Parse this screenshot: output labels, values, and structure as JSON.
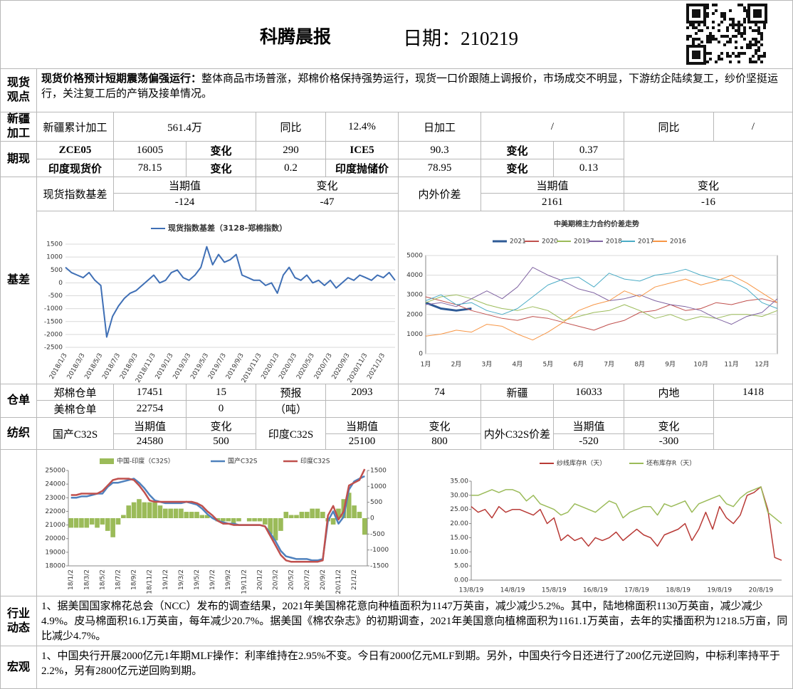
{
  "header": {
    "title": "科腾晨报",
    "date": "日期：210219"
  },
  "sections": {
    "spot": "现货观点",
    "xinjiang": "新疆加工",
    "futures": "期现",
    "basis": "基差",
    "warehouse": "仓单",
    "textile": "纺织",
    "industry": "行业动态",
    "macro": "宏观"
  },
  "spot_view": {
    "lead": "现货价格预计短期震荡偏强运行：",
    "text": "整体商品市场普涨，郑棉价格保持强势运行，现货一口价跟随上调报价，市场成交不明显，下游纺企陆续复工，纱价坚挺运行，关注复工后的产销及接单情况。"
  },
  "xinjiang_row": [
    "新疆累计加工",
    "561.4万",
    "同比",
    "12.4%",
    "日加工",
    "/",
    "同比",
    "/"
  ],
  "futures_rows": [
    [
      "ZCE05",
      "16005",
      "变化",
      "290",
      "ICE5",
      "90.3",
      "变化",
      "0.37"
    ],
    [
      "印度现货价",
      "78.15",
      "变化",
      "0.2",
      "印度抛储价",
      "78.95",
      "变化",
      "0.13"
    ]
  ],
  "basis_table": {
    "header": [
      "现货指数基差",
      "当期值",
      "变化",
      "内外价差",
      "当期值",
      "变化"
    ],
    "values": [
      "-124",
      "-47",
      "2161",
      "-16"
    ]
  },
  "warehouse_rows": [
    [
      "郑棉仓单",
      "17451",
      "15",
      "预报",
      "2093",
      "74",
      "新疆",
      "16033",
      "内地",
      "1418"
    ],
    [
      "美棉仓单",
      "22754",
      "0",
      "（吨）"
    ]
  ],
  "textile_table": {
    "header": [
      "国产C32S",
      "当期值",
      "变化",
      "印度C32S",
      "当期值",
      "变化",
      "内外C32S价差",
      "当期值",
      "变化"
    ],
    "values": [
      "24580",
      "500",
      "25100",
      "800",
      "-520",
      "-300"
    ]
  },
  "industry_news": "1、据美国国家棉花总会（NCC）发布的调查结果，2021年美国棉花意向种植面积为1147万英亩，减少减少5.2%。其中，陆地棉面积1130万英亩，减少减少4.9%。皮马棉面积16.1万英亩，每年减少20.7%。据美国《棉农杂志》的初期调查，2021年美国意向植棉面积为1161.1万英亩，去年的实播面积为1218.5万亩，同比减少4.7%。",
  "macro_news": "1、中国央行开展2000亿元1年期MLF操作：利率维持在2.95%不变。今日有2000亿元MLF到期。另外，中国央行今日还进行了200亿元逆回购，中标利率持平于2.2%，另有2800亿元逆回购到期。",
  "chart_data": [
    {
      "type": "line",
      "grid": true,
      "categories": [
        "2018/1/3",
        null,
        null,
        "2018/3/3",
        null,
        null,
        "2018/5/3",
        null,
        null,
        "2018/7/3",
        null,
        null,
        "2018/9/3",
        null,
        null,
        "2018/11/3",
        null,
        null,
        "2019/1/3",
        null,
        null,
        "2019/3/3",
        null,
        null,
        "2019/5/3",
        null,
        null,
        "2019/7/3",
        null,
        null,
        "2019/9/3",
        null,
        null,
        "2019/11/3",
        null,
        null,
        "2020/1/3",
        null,
        null,
        "2020/3/3",
        null,
        null,
        "2020/5/3",
        null,
        null,
        "2020/7/3",
        null,
        null,
        "2020/9/3",
        null,
        null,
        "2020/11/3",
        null,
        null,
        "2021/1/3",
        null,
        null
      ],
      "series": [
        {
          "name": "现货指数基差（3128-郑棉指数）",
          "color": "#3f6fb5",
          "values": [
            600,
            400,
            300,
            200,
            400,
            100,
            -100,
            -2100,
            -1300,
            -900,
            -600,
            -400,
            -300,
            -100,
            100,
            300,
            0,
            100,
            400,
            500,
            200,
            100,
            300,
            600,
            1400,
            700,
            1100,
            800,
            900,
            1100,
            300,
            200,
            100,
            100,
            -100,
            0,
            -400,
            300,
            600,
            200,
            100,
            300,
            0,
            100,
            -100,
            100,
            -200,
            0,
            200,
            100,
            300,
            200,
            100,
            300,
            200,
            400,
            100
          ]
        }
      ],
      "ylim": [
        -2500,
        1500
      ],
      "yticks": [
        -2500,
        -2000,
        -1500,
        -1000,
        -500,
        0,
        500,
        1000,
        1500
      ]
    },
    {
      "type": "line",
      "title": "中美期棉主力合约价差走势",
      "grid": true,
      "categories": [
        "1月",
        null,
        "2月",
        null,
        "3月",
        null,
        "4月",
        null,
        "5月",
        null,
        "6月",
        null,
        "7月",
        null,
        "8月",
        null,
        "9月",
        null,
        "10月",
        null,
        "11月",
        null,
        "12月",
        null
      ],
      "series": [
        {
          "name": "2021",
          "color": "#2e5a96",
          "values": [
            2600,
            2300,
            2200,
            2300,
            null,
            null,
            null,
            null,
            null,
            null,
            null,
            null,
            null,
            null,
            null,
            null,
            null,
            null,
            null,
            null,
            null,
            null,
            null,
            null
          ]
        },
        {
          "name": "2020",
          "color": "#c0504d",
          "values": [
            2900,
            2700,
            2500,
            2200,
            2000,
            1800,
            1700,
            1900,
            1800,
            1600,
            1400,
            1200,
            1500,
            1700,
            2100,
            2200,
            2500,
            2200,
            2300,
            2600,
            2500,
            2700,
            2800,
            2600
          ]
        },
        {
          "name": "2019",
          "color": "#9bbb59",
          "values": [
            2600,
            2900,
            3000,
            2800,
            2500,
            2300,
            2200,
            2400,
            2200,
            1700,
            1900,
            2100,
            2200,
            2500,
            2200,
            1800,
            2000,
            1700,
            1900,
            1800,
            2000,
            2000,
            1900,
            2200
          ]
        },
        {
          "name": "2018",
          "color": "#8064a2",
          "values": [
            2500,
            2600,
            2400,
            2800,
            3200,
            2800,
            3400,
            4400,
            4000,
            3700,
            3300,
            3100,
            2700,
            2800,
            3000,
            2700,
            2500,
            2400,
            2200,
            1800,
            1500,
            1900,
            2100,
            2800
          ]
        },
        {
          "name": "2017",
          "color": "#4bacc6",
          "values": [
            2700,
            3000,
            2500,
            2600,
            2200,
            2000,
            2300,
            2900,
            3500,
            3800,
            3900,
            3400,
            4100,
            3800,
            3700,
            4000,
            4100,
            4300,
            4000,
            3800,
            3700,
            3300,
            2600,
            2300
          ]
        },
        {
          "name": "2016",
          "color": "#f79646",
          "values": [
            900,
            1000,
            1200,
            1100,
            1500,
            1400,
            1000,
            700,
            1100,
            1600,
            2200,
            2500,
            2700,
            3200,
            2900,
            3400,
            3600,
            3800,
            3500,
            3700,
            4000,
            3600,
            3100,
            2600
          ]
        }
      ],
      "ylim": [
        0,
        5000
      ],
      "yticks": [
        0,
        1000,
        2000,
        3000,
        4000,
        5000
      ]
    },
    {
      "type": "combo",
      "grid": false,
      "categories": [
        "18/1/2",
        null,
        null,
        "18/3/2",
        null,
        null,
        "18/5/2",
        null,
        null,
        "18/7/2",
        null,
        null,
        "18/9/2",
        null,
        null,
        "18/11/2",
        null,
        null,
        "19/1/2",
        null,
        null,
        "19/3/2",
        null,
        null,
        "19/5/2",
        null,
        null,
        "19/7/2",
        null,
        null,
        "19/9/2",
        null,
        null,
        "19/11/2",
        null,
        null,
        "20/1/2",
        null,
        null,
        "20/3/2",
        null,
        null,
        "20/5/2",
        null,
        null,
        "20/7/2",
        null,
        null,
        "20/9/2",
        null,
        null,
        "20/11/2",
        null,
        null,
        "21/1/2",
        null,
        null
      ],
      "series": [
        {
          "name": "中国-印度（C32S）",
          "type": "bar",
          "axis": "y2",
          "color": "#9bbb59",
          "values": [
            -300,
            -300,
            -300,
            -300,
            -200,
            -300,
            -200,
            -400,
            -600,
            -200,
            100,
            400,
            500,
            600,
            500,
            500,
            500,
            400,
            300,
            300,
            300,
            300,
            200,
            200,
            200,
            100,
            100,
            0,
            -100,
            -100,
            -100,
            -200,
            -100,
            0,
            -100,
            -100,
            -100,
            -200,
            -500,
            -700,
            -400,
            200,
            100,
            100,
            200,
            200,
            300,
            300,
            200,
            -100,
            -200,
            300,
            600,
            800,
            400,
            200,
            -520
          ]
        },
        {
          "name": "国产C32S",
          "type": "line",
          "color": "#4f81bd",
          "values": [
            23000,
            23000,
            23100,
            23100,
            23200,
            23300,
            23300,
            23800,
            24100,
            24100,
            24200,
            24300,
            24400,
            24100,
            23700,
            23200,
            22800,
            22700,
            22600,
            22600,
            22600,
            22600,
            22700,
            22600,
            22500,
            22200,
            21800,
            21500,
            21300,
            21200,
            21100,
            21100,
            21000,
            21000,
            21000,
            21000,
            21000,
            20900,
            20400,
            19800,
            19100,
            18700,
            18600,
            18500,
            18500,
            18500,
            18400,
            18400,
            18500,
            21300,
            22000,
            21100,
            21600,
            23600,
            24200,
            24400,
            24580
          ]
        },
        {
          "name": "印度C32S",
          "type": "line",
          "color": "#c0504d",
          "values": [
            23200,
            23200,
            23300,
            23300,
            23300,
            23300,
            23500,
            23900,
            24300,
            24400,
            24400,
            24400,
            24300,
            23900,
            23400,
            22800,
            22700,
            22700,
            22700,
            22700,
            22700,
            22700,
            22700,
            22700,
            22600,
            22400,
            22000,
            21700,
            21300,
            21100,
            21100,
            21000,
            21000,
            21000,
            21000,
            21000,
            21000,
            20900,
            20200,
            19500,
            18800,
            18400,
            18300,
            18300,
            18300,
            18300,
            18300,
            18300,
            18400,
            21700,
            22400,
            21400,
            22000,
            23900,
            24100,
            24300,
            25100
          ]
        }
      ],
      "ylim": [
        18000,
        25000
      ],
      "yticks": [
        18000,
        19000,
        20000,
        21000,
        22000,
        23000,
        24000,
        25000
      ],
      "y2lim": [
        -1500,
        1500
      ],
      "y2ticks": [
        -1500,
        -1000,
        -500,
        0,
        500,
        1000,
        1500
      ]
    },
    {
      "type": "line",
      "grid": false,
      "categories": [
        "13/8/19",
        null,
        null,
        null,
        null,
        null,
        "14/8/19",
        null,
        null,
        null,
        null,
        null,
        "15/8/19",
        null,
        null,
        null,
        null,
        null,
        "16/8/19",
        null,
        null,
        null,
        null,
        null,
        "17/8/19",
        null,
        null,
        null,
        null,
        null,
        "18/8/19",
        null,
        null,
        null,
        null,
        null,
        "19/8/19",
        null,
        null,
        null,
        null,
        null,
        "20/8/19",
        null,
        null,
        null
      ],
      "series": [
        {
          "name": "纱线库存R（天）",
          "color": "#b83a36",
          "values": [
            26,
            24,
            25,
            22,
            26,
            24,
            25,
            25,
            24,
            23,
            25,
            20,
            22,
            14,
            16,
            14,
            15,
            12,
            15,
            14,
            15,
            17,
            14,
            16,
            18,
            16,
            15,
            12,
            16,
            17,
            18,
            20,
            14,
            18,
            24,
            18,
            26,
            22,
            20,
            23,
            30,
            31,
            33,
            25,
            8,
            7
          ]
        },
        {
          "name": "坯布库存R（天）",
          "color": "#9bbb59",
          "values": [
            30,
            30,
            31,
            32,
            31,
            32,
            32,
            31,
            28,
            30,
            27,
            26,
            25,
            23,
            24,
            27,
            26,
            25,
            24,
            26,
            28,
            27,
            22,
            24,
            25,
            26,
            26,
            23,
            27,
            26,
            27,
            28,
            24,
            27,
            28,
            29,
            30,
            27,
            26,
            29,
            31,
            32,
            33,
            24,
            22,
            20
          ]
        }
      ],
      "ylim": [
        0,
        35
      ],
      "yticks": [
        {
          "value": 0,
          "label": "0.00"
        },
        {
          "value": 5,
          "label": "5.00"
        },
        {
          "value": 10,
          "label": "10.00"
        },
        {
          "value": 15,
          "label": "15.00"
        },
        {
          "value": 20,
          "label": "20.00"
        },
        {
          "value": 25,
          "label": "25.00"
        },
        {
          "value": 30,
          "label": "30.00"
        },
        {
          "value": 35,
          "label": "35.00"
        }
      ]
    }
  ]
}
